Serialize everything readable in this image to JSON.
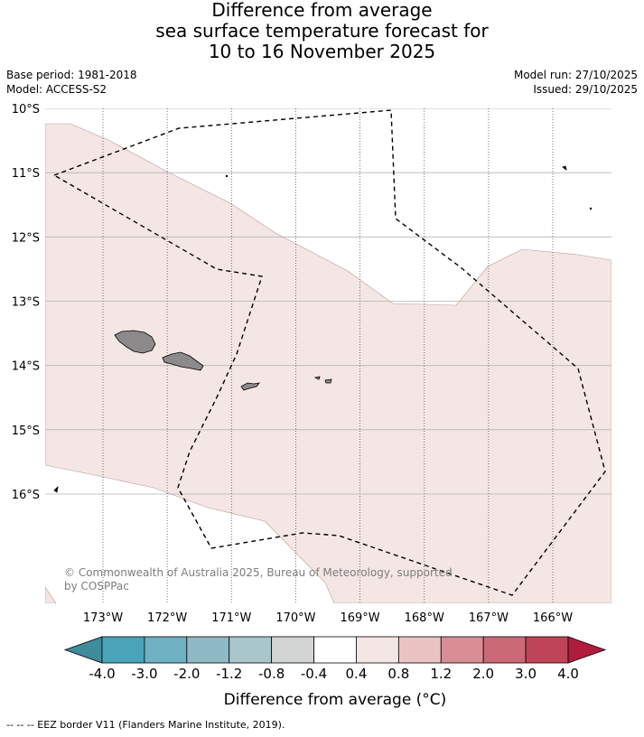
{
  "title": {
    "line1": "Difference from average",
    "line2": "sea surface temperature forecast for",
    "line3": "10 to 16 November 2025"
  },
  "meta": {
    "base_period": "Base period: 1981-2018",
    "model": "Model: ACCESS-S2",
    "model_run": "Model run: 27/10/2025",
    "issued": "Issued: 29/10/2025"
  },
  "map": {
    "lon_range": [
      -173.9,
      -165.1
    ],
    "lat_range": [
      -17.7,
      -10.0
    ],
    "lat_ticks": [
      {
        "value": -10,
        "label": "10°S"
      },
      {
        "value": -11,
        "label": "11°S"
      },
      {
        "value": -12,
        "label": "12°S"
      },
      {
        "value": -13,
        "label": "13°S"
      },
      {
        "value": -14,
        "label": "14°S"
      },
      {
        "value": -15,
        "label": "15°S"
      },
      {
        "value": -16,
        "label": "16°S"
      }
    ],
    "lon_ticks": [
      {
        "value": -173,
        "label": "173°W"
      },
      {
        "value": -172,
        "label": "172°W"
      },
      {
        "value": -171,
        "label": "171°W"
      },
      {
        "value": -170,
        "label": "170°W"
      },
      {
        "value": -169,
        "label": "169°W"
      },
      {
        "value": -168,
        "label": "168°W"
      },
      {
        "value": -167,
        "label": "167°W"
      },
      {
        "value": -166,
        "label": "166°W"
      }
    ],
    "anomaly_fill_color": "#f4e6e4",
    "land_color": "#8c8a8a",
    "copyright_line1": "© Commonwealth of Australia 2025, Bureau of Meteorology, supported",
    "copyright_line2": "by COSPPac",
    "eez_color": "#000000"
  },
  "colorbar": {
    "label": "Difference from average (°C)",
    "ticks": [
      "-4.0",
      "-3.0",
      "-2.0",
      "-1.2",
      "-0.8",
      "-0.4",
      "0.4",
      "0.8",
      "1.2",
      "2.0",
      "3.0",
      "4.0"
    ],
    "colors": [
      "#3e8c9c",
      "#4aa5b8",
      "#6fb0c1",
      "#8fb9c4",
      "#a9c6ca",
      "#d3d5d5",
      "#ffffff",
      "#f4e6e4",
      "#e9c4c1",
      "#d98e95",
      "#cb6a76",
      "#c04457",
      "#b01c3c"
    ]
  },
  "footnote": "--  --  -- EEZ border V11 (Flanders Marine Institute, 2019)."
}
